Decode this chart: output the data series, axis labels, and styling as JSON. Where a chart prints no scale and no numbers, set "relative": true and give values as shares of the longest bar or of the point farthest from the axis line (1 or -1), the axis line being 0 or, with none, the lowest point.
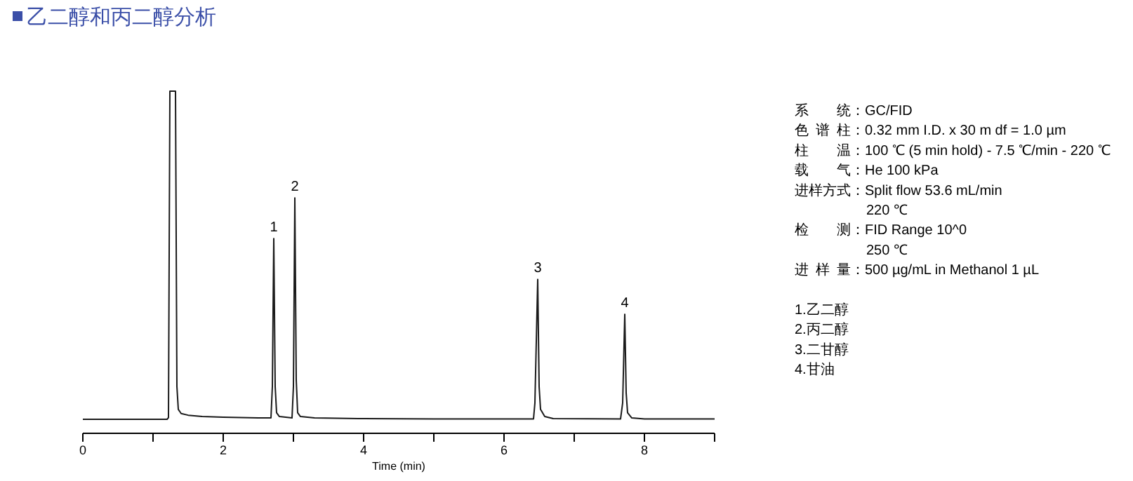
{
  "chart_data": {
    "type": "line",
    "title": "乙二醇和丙二醇分析",
    "xlabel": "Time (min)",
    "relative": true,
    "xlim": [
      0,
      9
    ],
    "xticks": [
      0,
      {
        "value": 1,
        "label": null
      },
      2,
      {
        "value": 3,
        "label": null
      },
      4,
      {
        "value": 5,
        "label": null
      },
      6,
      {
        "value": 7,
        "label": null
      },
      8,
      {
        "value": 9,
        "label": null
      }
    ],
    "series": [
      {
        "color": "#1a1a1a",
        "x": [
          0,
          1.2,
          1.22,
          1.24,
          1.32,
          1.34,
          1.36,
          1.4,
          1.5,
          1.7,
          2.0,
          2.5,
          2.68,
          2.7,
          2.72,
          2.74,
          2.76,
          2.8,
          2.98,
          3.0,
          3.02,
          3.04,
          3.06,
          3.1,
          3.3,
          4,
          5,
          6.42,
          6.44,
          6.48,
          6.5,
          6.52,
          6.58,
          6.7,
          7.66,
          7.69,
          7.72,
          7.74,
          7.76,
          7.82,
          8,
          9
        ],
        "values": [
          0.041,
          0.041,
          0.046,
          1,
          1,
          0.137,
          0.07,
          0.058,
          0.053,
          0.049,
          0.047,
          0.045,
          0.045,
          0.137,
          0.569,
          0.137,
          0.06,
          0.049,
          0.045,
          0.137,
          0.688,
          0.156,
          0.06,
          0.049,
          0.045,
          0.043,
          0.042,
          0.042,
          0.089,
          0.45,
          0.137,
          0.07,
          0.049,
          0.043,
          0.042,
          0.089,
          0.348,
          0.118,
          0.06,
          0.045,
          0.042,
          0.042
        ]
      }
    ],
    "annotations": [
      "系统：GC/FID",
      "色谱柱：0.32 mm I.D. x 30 m   df = 1.0 µm",
      "柱温：100 ℃ (5 min hold) - 7.5 ℃/min - 220 ℃",
      "载气：He 100 kPa",
      "进样方式：Split flow 53.6 mL/min",
      "220 ℃",
      "检测：FID   Range 10^0",
      "250 ℃",
      "进样量：500 µg/mL in Methanol 1 µL",
      "1.乙二醇",
      "2.丙二醇",
      "3.二甘醇",
      "4.甘油",
      {
        "text": "1",
        "x": 2.72,
        "y": 0.569
      },
      {
        "text": "2",
        "x": 3.02,
        "y": 0.688
      },
      {
        "text": "3",
        "x": 6.48,
        "y": 0.45
      },
      {
        "text": "4",
        "x": 7.72,
        "y": 0.348
      }
    ]
  }
}
